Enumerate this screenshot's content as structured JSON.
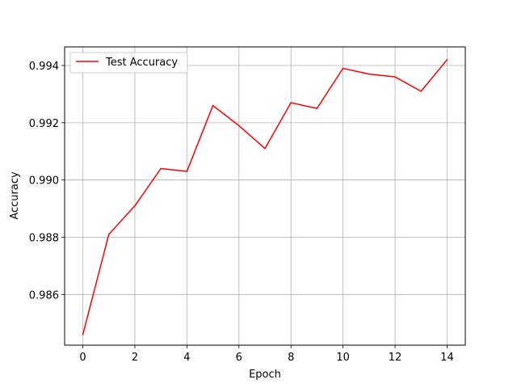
{
  "chart_data": {
    "type": "line",
    "xlabel": "Epoch",
    "ylabel": "Accuracy",
    "xlim": [
      -0.7,
      14.7
    ],
    "ylim": [
      0.98423,
      0.99465
    ],
    "x_ticks": [
      0,
      2,
      4,
      6,
      8,
      10,
      12,
      14
    ],
    "x_tick_labels": [
      "0",
      "2",
      "4",
      "6",
      "8",
      "10",
      "12",
      "14"
    ],
    "y_ticks": [
      0.986,
      0.988,
      0.99,
      0.992,
      0.994
    ],
    "y_tick_labels": [
      "0.986",
      "0.988",
      "0.990",
      "0.992",
      "0.994"
    ],
    "grid": true,
    "legend_position": "top-left",
    "x": [
      0,
      1,
      2,
      3,
      4,
      5,
      6,
      7,
      8,
      9,
      10,
      11,
      12,
      13,
      14
    ],
    "series": [
      {
        "name": "Test Accuracy",
        "color": "#ff0000",
        "values": [
          0.9846,
          0.9881,
          0.9891,
          0.9904,
          0.9903,
          0.9926,
          0.9919,
          0.9911,
          0.9927,
          0.9925,
          0.9939,
          0.9937,
          0.9936,
          0.9931,
          0.9942
        ]
      }
    ]
  }
}
